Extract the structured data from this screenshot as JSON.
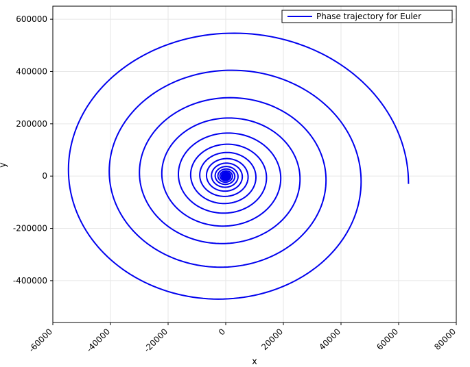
{
  "chart_data": {
    "type": "line",
    "title": "",
    "xlabel": "x",
    "ylabel": "y",
    "xlim": [
      -60000,
      80000
    ],
    "ylim": [
      -560000,
      650000
    ],
    "xticks": [
      -60000,
      -40000,
      -20000,
      0,
      20000,
      40000,
      60000,
      80000
    ],
    "yticks": [
      -400000,
      -200000,
      0,
      200000,
      400000,
      600000
    ],
    "xtick_labels": [
      "-60000",
      "-40000",
      "-20000",
      "0",
      "20000",
      "40000",
      "60000",
      "80000"
    ],
    "ytick_labels": [
      "-400000",
      "-200000",
      "0",
      "200000",
      "400000",
      "600000"
    ],
    "grid": true,
    "legend": {
      "placement": "top-right",
      "entries": [
        "Phase trajectory for Euler"
      ]
    },
    "series": [
      {
        "name": "Phase trajectory for Euler",
        "color": "#0000ee",
        "spiral_model": {
          "start": [
            63500,
            -30000
          ],
          "a0": 63500,
          "b0": 590000,
          "growth_per_turn": 1.35,
          "turns": 15,
          "direction": "clockwise-inward"
        }
      }
    ]
  }
}
